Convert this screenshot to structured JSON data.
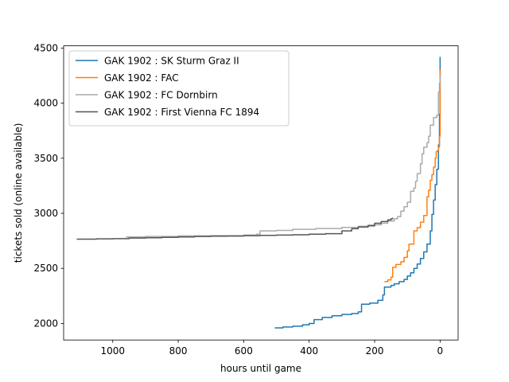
{
  "chart_data": {
    "type": "line",
    "xlabel": "hours until game",
    "ylabel": "tickets sold (online available)",
    "xlim": [
      1150,
      -55
    ],
    "ylim": [
      1850,
      4520
    ],
    "x_reversed": true,
    "xticks": [
      1000,
      800,
      600,
      400,
      200,
      0
    ],
    "yticks": [
      2000,
      2500,
      3000,
      3500,
      4000,
      4500
    ],
    "grid": false,
    "legend_position": "top-left",
    "series": [
      {
        "name": "GAK 1902 : SK Sturm Graz II",
        "color": "#1f77b4",
        "points": [
          [
            505,
            1960
          ],
          [
            480,
            1968
          ],
          [
            450,
            1975
          ],
          [
            420,
            1988
          ],
          [
            400,
            2000
          ],
          [
            385,
            2035
          ],
          [
            360,
            2055
          ],
          [
            330,
            2070
          ],
          [
            300,
            2082
          ],
          [
            270,
            2090
          ],
          [
            250,
            2105
          ],
          [
            240,
            2175
          ],
          [
            215,
            2185
          ],
          [
            190,
            2210
          ],
          [
            175,
            2260
          ],
          [
            170,
            2330
          ],
          [
            150,
            2345
          ],
          [
            140,
            2360
          ],
          [
            125,
            2380
          ],
          [
            110,
            2400
          ],
          [
            100,
            2430
          ],
          [
            90,
            2460
          ],
          [
            80,
            2500
          ],
          [
            70,
            2540
          ],
          [
            60,
            2590
          ],
          [
            50,
            2650
          ],
          [
            40,
            2720
          ],
          [
            30,
            2840
          ],
          [
            25,
            2990
          ],
          [
            20,
            3120
          ],
          [
            15,
            3260
          ],
          [
            10,
            3400
          ],
          [
            5,
            3620
          ],
          [
            2,
            3900
          ],
          [
            0,
            4420
          ]
        ]
      },
      {
        "name": "GAK 1902 : FAC",
        "color": "#ff7f0e",
        "points": [
          [
            170,
            2380
          ],
          [
            160,
            2395
          ],
          [
            150,
            2420
          ],
          [
            145,
            2510
          ],
          [
            135,
            2535
          ],
          [
            120,
            2560
          ],
          [
            110,
            2600
          ],
          [
            100,
            2660
          ],
          [
            95,
            2720
          ],
          [
            80,
            2840
          ],
          [
            70,
            2870
          ],
          [
            60,
            2920
          ],
          [
            50,
            2980
          ],
          [
            40,
            3150
          ],
          [
            35,
            3210
          ],
          [
            30,
            3300
          ],
          [
            25,
            3350
          ],
          [
            20,
            3420
          ],
          [
            15,
            3500
          ],
          [
            12,
            3560
          ],
          [
            8,
            3570
          ],
          [
            5,
            3600
          ],
          [
            2,
            3700
          ],
          [
            0,
            4300
          ]
        ]
      },
      {
        "name": "GAK 1902 : FC Dornbirn",
        "color": "#aaaaaa",
        "points": [
          [
            960,
            2785
          ],
          [
            900,
            2790
          ],
          [
            800,
            2795
          ],
          [
            700,
            2797
          ],
          [
            600,
            2802
          ],
          [
            560,
            2810
          ],
          [
            550,
            2840
          ],
          [
            500,
            2845
          ],
          [
            450,
            2855
          ],
          [
            380,
            2862
          ],
          [
            300,
            2872
          ],
          [
            250,
            2882
          ],
          [
            200,
            2895
          ],
          [
            180,
            2910
          ],
          [
            160,
            2930
          ],
          [
            140,
            2950
          ],
          [
            130,
            2970
          ],
          [
            120,
            3020
          ],
          [
            110,
            3060
          ],
          [
            100,
            3100
          ],
          [
            90,
            3200
          ],
          [
            80,
            3230
          ],
          [
            75,
            3290
          ],
          [
            70,
            3360
          ],
          [
            60,
            3450
          ],
          [
            55,
            3540
          ],
          [
            50,
            3600
          ],
          [
            40,
            3640
          ],
          [
            35,
            3700
          ],
          [
            30,
            3800
          ],
          [
            20,
            3870
          ],
          [
            10,
            3890
          ],
          [
            5,
            4100
          ],
          [
            2,
            4180
          ],
          [
            0,
            4250
          ]
        ]
      },
      {
        "name": "GAK 1902 : First Vienna FC 1894",
        "color": "#555555",
        "points": [
          [
            1110,
            2765
          ],
          [
            1050,
            2768
          ],
          [
            1000,
            2770
          ],
          [
            950,
            2775
          ],
          [
            900,
            2778
          ],
          [
            850,
            2782
          ],
          [
            800,
            2785
          ],
          [
            750,
            2790
          ],
          [
            700,
            2792
          ],
          [
            650,
            2793
          ],
          [
            600,
            2797
          ],
          [
            550,
            2800
          ],
          [
            500,
            2802
          ],
          [
            450,
            2805
          ],
          [
            400,
            2810
          ],
          [
            350,
            2815
          ],
          [
            300,
            2840
          ],
          [
            270,
            2860
          ],
          [
            250,
            2875
          ],
          [
            220,
            2890
          ],
          [
            200,
            2910
          ],
          [
            180,
            2925
          ],
          [
            160,
            2940
          ],
          [
            150,
            2950
          ],
          [
            145,
            2960
          ]
        ]
      }
    ]
  }
}
